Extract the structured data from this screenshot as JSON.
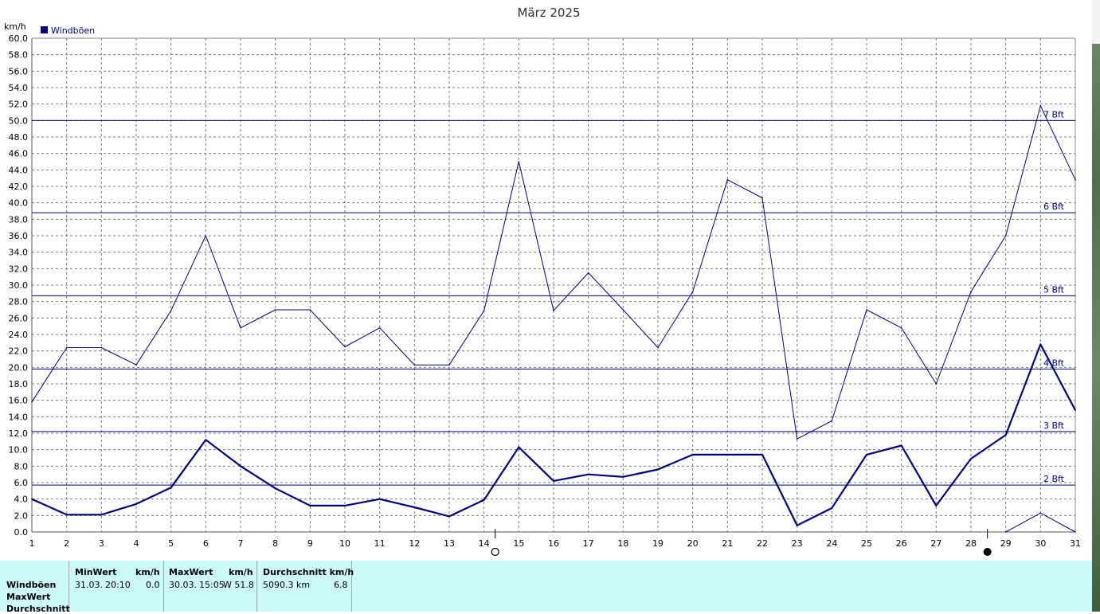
{
  "chart_data": {
    "type": "line",
    "title": "März 2025",
    "ylabel": "km/h",
    "xlabel": "",
    "ylim": [
      0,
      60
    ],
    "ytick_step": 2,
    "x": [
      1,
      2,
      3,
      4,
      5,
      6,
      7,
      8,
      9,
      10,
      11,
      12,
      13,
      14,
      15,
      16,
      17,
      18,
      19,
      20,
      21,
      22,
      23,
      24,
      25,
      26,
      27,
      28,
      29,
      30,
      31
    ],
    "legend": [
      "Windböen"
    ],
    "series": [
      {
        "name": "Windböen",
        "role": "max",
        "values": [
          15.8,
          22.4,
          22.4,
          20.3,
          26.9,
          36.0,
          24.8,
          27.0,
          27.0,
          22.5,
          24.8,
          20.3,
          20.3,
          26.9,
          45.0,
          26.9,
          31.5,
          27.0,
          22.4,
          29.2,
          42.8,
          40.6,
          11.3,
          13.5,
          27.0,
          24.8,
          18.0,
          29.2,
          36.0,
          51.8,
          42.8
        ]
      },
      {
        "name": "Windböen",
        "role": "average",
        "values": [
          4.0,
          2.1,
          2.1,
          3.4,
          5.4,
          11.2,
          8.0,
          5.3,
          3.2,
          3.2,
          4.0,
          3.0,
          1.9,
          3.9,
          10.3,
          6.2,
          7.0,
          6.7,
          7.6,
          9.4,
          9.4,
          9.4,
          0.8,
          2.9,
          9.4,
          10.5,
          3.2,
          8.9,
          11.8,
          22.8,
          14.8
        ]
      },
      {
        "name": "Windböen",
        "role": "min",
        "x": [
          29,
          30,
          31
        ],
        "values": [
          0.0,
          2.3,
          0.0
        ]
      }
    ],
    "beaufort_lines": [
      {
        "label": "2 Bft",
        "value": 5.7
      },
      {
        "label": "3 Bft",
        "value": 12.2
      },
      {
        "label": "4 Bft",
        "value": 19.8
      },
      {
        "label": "5 Bft",
        "value": 28.7
      },
      {
        "label": "6 Bft",
        "value": 38.8
      },
      {
        "label": "7 Bft",
        "value": 50.0
      }
    ],
    "moon_phases": [
      {
        "day": 14,
        "phase": "full-moon"
      },
      {
        "day": 29,
        "phase": "new-moon"
      }
    ],
    "grid": true,
    "legend_placement": "top-left"
  },
  "colors": {
    "series": "#000080",
    "grid": "#7a7a7a",
    "stats_bg": "#ccfafa"
  },
  "stats": {
    "row_labels": [
      "Windböen",
      "MaxWert",
      "Durchschnitt"
    ],
    "min": {
      "header": "MinWert",
      "unit": "km/h",
      "date": "31.03.",
      "time": "20:10",
      "value": "0.0"
    },
    "max": {
      "header": "MaxWert",
      "unit": "km/h",
      "date": "30.03.",
      "time": "15:05",
      "value": "W 51.8"
    },
    "avg": {
      "header": "Durchschnitt km/h",
      "distance": "5090.3 km",
      "value": "6.8"
    }
  }
}
